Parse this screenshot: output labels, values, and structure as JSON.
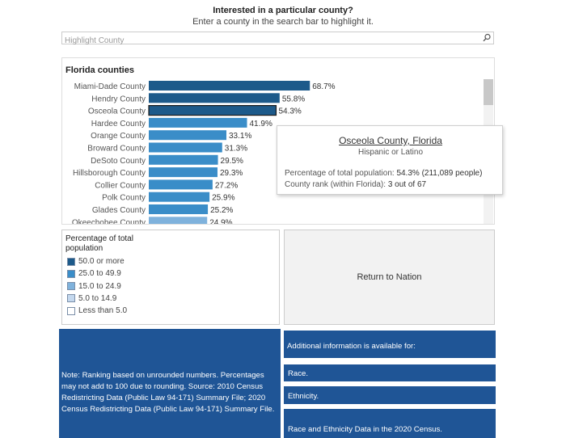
{
  "header": {
    "title": "Interested in a particular county?",
    "subtitle": "Enter a county in the search bar to highlight it."
  },
  "search": {
    "placeholder": "Highlight County",
    "icon": "search-icon"
  },
  "chart_data": {
    "type": "bar",
    "orientation": "horizontal",
    "title": "Florida counties",
    "categories": [
      "Miami-Dade County",
      "Hendry County",
      "Osceola County",
      "Hardee County",
      "Orange County",
      "Broward County",
      "DeSoto County",
      "Hillsborough County",
      "Collier County",
      "Polk County",
      "Glades County",
      "Okeechobee County"
    ],
    "values": [
      68.7,
      55.8,
      54.3,
      41.9,
      33.1,
      31.3,
      29.5,
      29.3,
      27.2,
      25.9,
      25.2,
      24.9
    ],
    "value_labels": [
      "68.7%",
      "55.8%",
      "54.3%",
      "41.9%",
      "33.1%",
      "31.3%",
      "29.5%",
      "29.3%",
      "27.2%",
      "25.9%",
      "25.2%",
      "24.9%"
    ],
    "highlighted": "Osceola County",
    "xlim": [
      0,
      100
    ],
    "grid": false
  },
  "tooltip": {
    "county": "Osceola County, Florida",
    "group": "Hispanic or Latino",
    "pct_label": "Percentage of total population:",
    "pct_value": "54.3%",
    "people": "(211,089 people)",
    "rank_label": "County rank (within Florida):",
    "rank_value": "3 out of 67"
  },
  "legend": {
    "title": "Percentage of total population",
    "items": [
      {
        "label": "50.0 or more",
        "color": "#1d5a8a"
      },
      {
        "label": "25.0 to 49.9",
        "color": "#3a8dc8"
      },
      {
        "label": "15.0 to 24.9",
        "color": "#7fb2dc"
      },
      {
        "label": "5.0 to 14.9",
        "color": "#c4d8ee"
      },
      {
        "label": "Less than 5.0",
        "color": "#ffffff"
      }
    ]
  },
  "return_button": {
    "label": "Return to Nation"
  },
  "note": {
    "text": "Note: Ranking based on unrounded numbers. Percentages may not add to 100 due to rounding. Source: 2010 Census Redistricting Data (Public Law 94-171) Summary File; 2020 Census Redistricting Data (Public Law 94-171) Summary File."
  },
  "info": {
    "heading": "Additional information is available for:",
    "links": [
      "Race.",
      "Ethnicity.",
      "Race and Ethnicity Data in the 2020 Census."
    ]
  },
  "colors": {
    "dark_blue": "#1d5a8a",
    "mid_blue": "#3a8dc8",
    "light_blue": "#7fb2dc",
    "panel_blue": "#1f5596",
    "highlight_outline": "#1a1a1a"
  }
}
